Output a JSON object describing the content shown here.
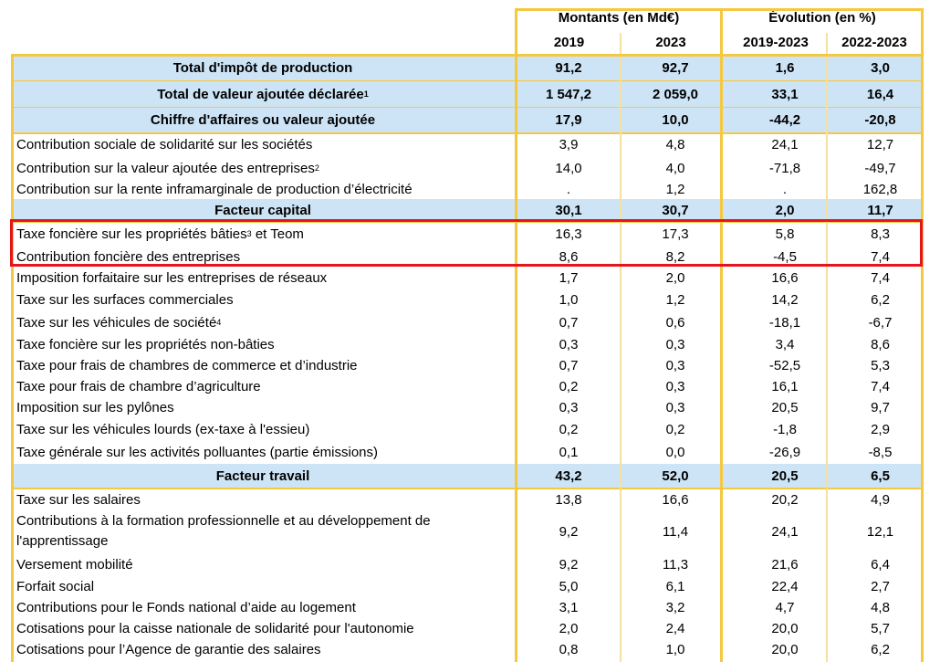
{
  "header": {
    "group1": "Montants (en Md€)",
    "group2": "Évolution (en %)",
    "col1": "2019",
    "col2": "2023",
    "col3": "2019-2023",
    "col4": "2022-2023"
  },
  "rows": [
    {
      "label": "Total d'impôt de production",
      "sup": "",
      "suffix": "",
      "v": [
        "91,2",
        "92,7",
        "1,6",
        "3,0"
      ],
      "style": "hl"
    },
    {
      "label": "Total de valeur ajoutée déclarée",
      "sup": "1",
      "suffix": "",
      "v": [
        "1 547,2",
        "2 059,0",
        "33,1",
        "16,4"
      ],
      "style": "hl"
    },
    {
      "label": "Chiffre d'affaires ou valeur ajoutée",
      "sup": "",
      "suffix": "",
      "v": [
        "17,9",
        "10,0",
        "-44,2",
        "-20,8"
      ],
      "style": "hl"
    },
    {
      "label": "Contribution sociale de solidarité sur les sociétés",
      "sup": "",
      "suffix": "",
      "v": [
        "3,9",
        "4,8",
        "24,1",
        "12,7"
      ],
      "style": "normal"
    },
    {
      "label": "Contribution sur la valeur ajoutée des entreprises",
      "sup": "2",
      "suffix": "",
      "v": [
        "14,0",
        "4,0",
        "-71,8",
        "-49,7"
      ],
      "style": "normal"
    },
    {
      "label": "Contribution sur la rente inframarginale de production d’électricité",
      "sup": "",
      "suffix": "",
      "v": [
        ".",
        "1,2",
        ".",
        "162,8"
      ],
      "style": "normal"
    },
    {
      "label": "Facteur capital",
      "sup": "",
      "suffix": "",
      "v": [
        "30,1",
        "30,7",
        "2,0",
        "11,7"
      ],
      "style": "hl"
    },
    {
      "label": "Taxe foncière sur les propriétés bâties",
      "sup": "3",
      "suffix": " et Teom",
      "v": [
        "16,3",
        "17,3",
        "5,8",
        "8,3"
      ],
      "style": "normal"
    },
    {
      "label": "Contribution foncière des entreprises",
      "sup": "",
      "suffix": "",
      "v": [
        "8,6",
        "8,2",
        "-4,5",
        "7,4"
      ],
      "style": "normal"
    },
    {
      "label": "Imposition forfaitaire sur les entreprises de réseaux",
      "sup": "",
      "suffix": "",
      "v": [
        "1,7",
        "2,0",
        "16,6",
        "7,4"
      ],
      "style": "normal"
    },
    {
      "label": "Taxe sur les surfaces commerciales",
      "sup": "",
      "suffix": "",
      "v": [
        "1,0",
        "1,2",
        "14,2",
        "6,2"
      ],
      "style": "normal"
    },
    {
      "label": "Taxe sur les véhicules de société",
      "sup": "4",
      "suffix": "",
      "v": [
        "0,7",
        "0,6",
        "-18,1",
        "-6,7"
      ],
      "style": "normal"
    },
    {
      "label": "Taxe foncière sur les propriétés non-bâties",
      "sup": "",
      "suffix": "",
      "v": [
        "0,3",
        "0,3",
        "3,4",
        "8,6"
      ],
      "style": "normal"
    },
    {
      "label": "Taxe pour frais de chambres de commerce et d’industrie",
      "sup": "",
      "suffix": "",
      "v": [
        "0,7",
        "0,3",
        "-52,5",
        "5,3"
      ],
      "style": "normal"
    },
    {
      "label": "Taxe pour frais de chambre d’agriculture",
      "sup": "",
      "suffix": "",
      "v": [
        "0,2",
        "0,3",
        "16,1",
        "7,4"
      ],
      "style": "normal"
    },
    {
      "label": "Imposition sur les pylônes",
      "sup": "",
      "suffix": "",
      "v": [
        "0,3",
        "0,3",
        "20,5",
        "9,7"
      ],
      "style": "normal"
    },
    {
      "label": "Taxe sur les véhicules lourds (ex-taxe à l'essieu)",
      "sup": "",
      "suffix": "",
      "v": [
        "0,2",
        "0,2",
        "-1,8",
        "2,9"
      ],
      "style": "normal"
    },
    {
      "label": "Taxe générale sur les activités polluantes (partie émissions)",
      "sup": "",
      "suffix": "",
      "v": [
        "0,1",
        "0,0",
        "-26,9",
        "-8,5"
      ],
      "style": "normal"
    },
    {
      "label": "Facteur travail",
      "sup": "",
      "suffix": "",
      "v": [
        "43,2",
        "52,0",
        "20,5",
        "6,5"
      ],
      "style": "hl"
    },
    {
      "label": "Taxe sur les salaires",
      "sup": "",
      "suffix": "",
      "v": [
        "13,8",
        "16,6",
        "20,2",
        "4,9"
      ],
      "style": "normal"
    },
    {
      "label": "Contributions à la formation professionnelle et au développement de l'apprentissage",
      "sup": "",
      "suffix": "",
      "v": [
        "9,2",
        "11,4",
        "24,1",
        "12,1"
      ],
      "style": "normal twoline"
    },
    {
      "label": "Versement mobilité",
      "sup": "",
      "suffix": "",
      "v": [
        "9,2",
        "11,3",
        "21,6",
        "6,4"
      ],
      "style": "normal"
    },
    {
      "label": "Forfait social",
      "sup": "",
      "suffix": "",
      "v": [
        "5,0",
        "6,1",
        "22,4",
        "2,7"
      ],
      "style": "normal"
    },
    {
      "label": "Contributions pour le Fonds national d’aide au logement",
      "sup": "",
      "suffix": "",
      "v": [
        "3,1",
        "3,2",
        "4,7",
        "4,8"
      ],
      "style": "normal"
    },
    {
      "label": "Cotisations pour la caisse nationale de solidarité pour l'autonomie",
      "sup": "",
      "suffix": "",
      "v": [
        "2,0",
        "2,4",
        "20,0",
        "5,7"
      ],
      "style": "normal"
    },
    {
      "label": "Cotisations pour l’Agence de garantie des salaires",
      "sup": "",
      "suffix": "",
      "v": [
        "0,8",
        "1,0",
        "20,0",
        "6,2"
      ],
      "style": "normal"
    }
  ],
  "highlight": {
    "color": "#e8141d"
  },
  "colors": {
    "header_fill": "#cde4f6",
    "grid": "#f5c842"
  }
}
